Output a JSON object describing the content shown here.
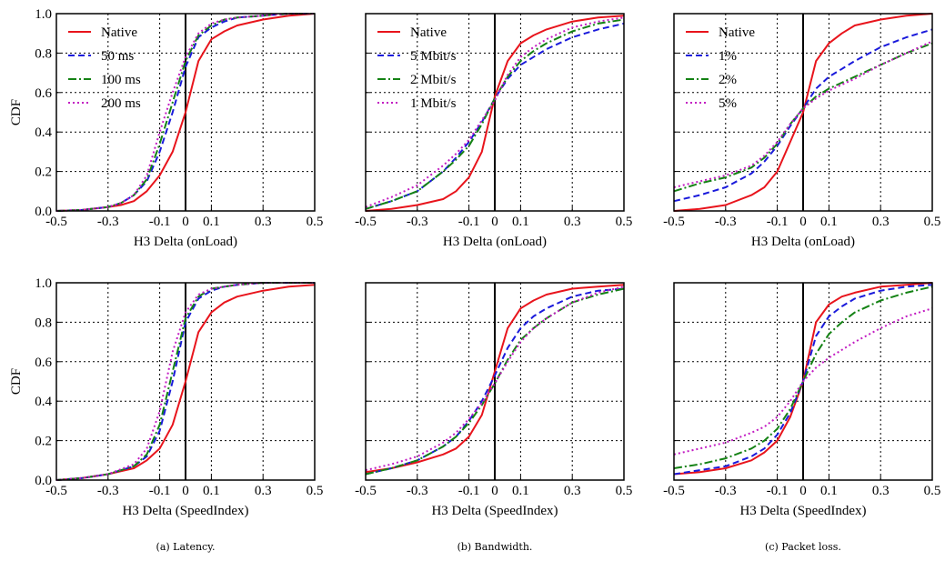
{
  "figure": {
    "captions": [
      "(a) Latency.",
      "(b) Bandwidth.",
      "(c) Packet loss."
    ]
  },
  "styles": {
    "Native": {
      "color": "#e8141c",
      "dash": "solid"
    },
    "50 ms": {
      "color": "#1a1adb",
      "dash": "dashed"
    },
    "100 ms": {
      "color": "#148214",
      "dash": "dashdot"
    },
    "200 ms": {
      "color": "#c21bc2",
      "dash": "dotted"
    },
    "5 Mbit/s": {
      "color": "#1a1adb",
      "dash": "dashed"
    },
    "2 Mbit/s": {
      "color": "#148214",
      "dash": "dashdot"
    },
    "1 Mbit/s": {
      "color": "#c21bc2",
      "dash": "dotted"
    },
    "1%": {
      "color": "#1a1adb",
      "dash": "dashed"
    },
    "2%": {
      "color": "#148214",
      "dash": "dashdot"
    },
    "5%": {
      "color": "#c21bc2",
      "dash": "dotted"
    }
  },
  "chart_data": [
    {
      "type": "line",
      "xlabel": "H3 Delta (onLoad)",
      "ylabel": "CDF",
      "xlim": [
        -0.5,
        0.5
      ],
      "ylim": [
        0,
        1
      ],
      "xticks": [
        "-0.5",
        "-0.3",
        "-0.1",
        "0",
        "0.1",
        "0.3",
        "0.5"
      ],
      "yticks": [
        "0.0",
        "0.2",
        "0.4",
        "0.6",
        "0.8",
        "1.0"
      ],
      "show_ytick_labels": true,
      "grid": true,
      "legend": "top-left",
      "series": [
        {
          "name": "Native",
          "x": [
            -0.5,
            -0.4,
            -0.3,
            -0.25,
            -0.2,
            -0.15,
            -0.1,
            -0.05,
            0,
            0.05,
            0.1,
            0.15,
            0.2,
            0.3,
            0.4,
            0.5
          ],
          "y": [
            0,
            0.005,
            0.02,
            0.03,
            0.05,
            0.1,
            0.18,
            0.3,
            0.5,
            0.76,
            0.87,
            0.91,
            0.94,
            0.97,
            0.99,
            1.0
          ]
        },
        {
          "name": "50 ms",
          "x": [
            -0.5,
            -0.4,
            -0.3,
            -0.25,
            -0.2,
            -0.15,
            -0.1,
            -0.05,
            0,
            0.05,
            0.1,
            0.15,
            0.2,
            0.3,
            0.4,
            0.5
          ],
          "y": [
            0,
            0.005,
            0.02,
            0.04,
            0.08,
            0.15,
            0.3,
            0.5,
            0.73,
            0.88,
            0.93,
            0.96,
            0.98,
            0.99,
            1.0,
            1.0
          ]
        },
        {
          "name": "100 ms",
          "x": [
            -0.5,
            -0.4,
            -0.3,
            -0.25,
            -0.2,
            -0.15,
            -0.1,
            -0.05,
            0,
            0.05,
            0.1,
            0.15,
            0.2,
            0.3,
            0.4,
            0.5
          ],
          "y": [
            0,
            0.005,
            0.02,
            0.04,
            0.08,
            0.16,
            0.34,
            0.55,
            0.76,
            0.89,
            0.94,
            0.97,
            0.98,
            0.99,
            1.0,
            1.0
          ]
        },
        {
          "name": "200 ms",
          "x": [
            -0.5,
            -0.4,
            -0.3,
            -0.25,
            -0.2,
            -0.15,
            -0.1,
            -0.05,
            0,
            0.05,
            0.1,
            0.15,
            0.2,
            0.3,
            0.4,
            0.5
          ],
          "y": [
            0,
            0.005,
            0.02,
            0.04,
            0.08,
            0.18,
            0.4,
            0.6,
            0.78,
            0.9,
            0.95,
            0.97,
            0.98,
            0.99,
            1.0,
            1.0
          ]
        }
      ]
    },
    {
      "type": "line",
      "xlabel": "H3 Delta (onLoad)",
      "ylabel": "",
      "xlim": [
        -0.5,
        0.5
      ],
      "ylim": [
        0,
        1
      ],
      "xticks": [
        "-0.5",
        "-0.3",
        "-0.1",
        "0",
        "0.1",
        "0.3",
        "0.5"
      ],
      "yticks": [
        "0.0",
        "0.2",
        "0.4",
        "0.6",
        "0.8",
        "1.0"
      ],
      "show_ytick_labels": false,
      "grid": true,
      "legend": "top-left",
      "series": [
        {
          "name": "Native",
          "x": [
            -0.5,
            -0.4,
            -0.3,
            -0.2,
            -0.15,
            -0.1,
            -0.05,
            0,
            0.05,
            0.1,
            0.15,
            0.2,
            0.3,
            0.4,
            0.5
          ],
          "y": [
            0,
            0.01,
            0.03,
            0.06,
            0.1,
            0.17,
            0.3,
            0.58,
            0.76,
            0.85,
            0.89,
            0.92,
            0.96,
            0.98,
            0.99
          ]
        },
        {
          "name": "5 Mbit/s",
          "x": [
            -0.5,
            -0.4,
            -0.3,
            -0.2,
            -0.15,
            -0.1,
            -0.05,
            0,
            0.05,
            0.1,
            0.15,
            0.2,
            0.3,
            0.4,
            0.5
          ],
          "y": [
            0.01,
            0.05,
            0.1,
            0.2,
            0.27,
            0.35,
            0.45,
            0.57,
            0.67,
            0.74,
            0.78,
            0.82,
            0.88,
            0.92,
            0.95
          ]
        },
        {
          "name": "2 Mbit/s",
          "x": [
            -0.5,
            -0.4,
            -0.3,
            -0.2,
            -0.15,
            -0.1,
            -0.05,
            0,
            0.05,
            0.1,
            0.15,
            0.2,
            0.3,
            0.4,
            0.5
          ],
          "y": [
            0.01,
            0.05,
            0.1,
            0.2,
            0.26,
            0.33,
            0.44,
            0.57,
            0.68,
            0.76,
            0.81,
            0.85,
            0.91,
            0.95,
            0.97
          ]
        },
        {
          "name": "1 Mbit/s",
          "x": [
            -0.5,
            -0.4,
            -0.3,
            -0.2,
            -0.15,
            -0.1,
            -0.05,
            0,
            0.05,
            0.1,
            0.15,
            0.2,
            0.3,
            0.4,
            0.5
          ],
          "y": [
            0.02,
            0.07,
            0.13,
            0.23,
            0.29,
            0.36,
            0.46,
            0.56,
            0.69,
            0.78,
            0.83,
            0.87,
            0.93,
            0.96,
            0.98
          ]
        }
      ]
    },
    {
      "type": "line",
      "xlabel": "H3 Delta (onLoad)",
      "ylabel": "",
      "xlim": [
        -0.5,
        0.5
      ],
      "ylim": [
        0,
        1
      ],
      "xticks": [
        "-0.5",
        "-0.3",
        "-0.1",
        "0",
        "0.1",
        "0.3",
        "0.5"
      ],
      "yticks": [
        "0.0",
        "0.2",
        "0.4",
        "0.6",
        "0.8",
        "1.0"
      ],
      "show_ytick_labels": false,
      "grid": true,
      "legend": "top-left",
      "series": [
        {
          "name": "Native",
          "x": [
            -0.5,
            -0.4,
            -0.3,
            -0.2,
            -0.15,
            -0.1,
            -0.05,
            0,
            0.05,
            0.1,
            0.15,
            0.2,
            0.3,
            0.4,
            0.5
          ],
          "y": [
            0,
            0.01,
            0.03,
            0.08,
            0.12,
            0.2,
            0.35,
            0.5,
            0.76,
            0.85,
            0.9,
            0.94,
            0.97,
            0.99,
            1.0
          ]
        },
        {
          "name": "1%",
          "x": [
            -0.5,
            -0.4,
            -0.3,
            -0.2,
            -0.15,
            -0.1,
            -0.05,
            0,
            0.05,
            0.1,
            0.15,
            0.2,
            0.3,
            0.4,
            0.5
          ],
          "y": [
            0.05,
            0.08,
            0.12,
            0.19,
            0.25,
            0.33,
            0.43,
            0.52,
            0.62,
            0.68,
            0.72,
            0.76,
            0.83,
            0.88,
            0.92
          ]
        },
        {
          "name": "2%",
          "x": [
            -0.5,
            -0.4,
            -0.3,
            -0.2,
            -0.15,
            -0.1,
            -0.05,
            0,
            0.05,
            0.1,
            0.15,
            0.2,
            0.3,
            0.4,
            0.5
          ],
          "y": [
            0.1,
            0.14,
            0.17,
            0.22,
            0.27,
            0.34,
            0.44,
            0.52,
            0.58,
            0.62,
            0.65,
            0.68,
            0.74,
            0.8,
            0.85
          ]
        },
        {
          "name": "5%",
          "x": [
            -0.5,
            -0.4,
            -0.3,
            -0.2,
            -0.15,
            -0.1,
            -0.05,
            0,
            0.05,
            0.1,
            0.15,
            0.2,
            0.3,
            0.4,
            0.5
          ],
          "y": [
            0.12,
            0.15,
            0.18,
            0.23,
            0.28,
            0.35,
            0.44,
            0.52,
            0.57,
            0.61,
            0.64,
            0.67,
            0.74,
            0.8,
            0.86
          ]
        }
      ]
    },
    {
      "type": "line",
      "xlabel": "H3 Delta (SpeedIndex)",
      "ylabel": "CDF",
      "xlim": [
        -0.5,
        0.5
      ],
      "ylim": [
        0,
        1
      ],
      "xticks": [
        "-0.5",
        "-0.3",
        "-0.1",
        "0",
        "0.1",
        "0.3",
        "0.5"
      ],
      "yticks": [
        "0.0",
        "0.2",
        "0.4",
        "0.6",
        "0.8",
        "1.0"
      ],
      "show_ytick_labels": true,
      "grid": true,
      "legend": "none",
      "series": [
        {
          "name": "Native",
          "x": [
            -0.5,
            -0.4,
            -0.3,
            -0.2,
            -0.15,
            -0.1,
            -0.05,
            0,
            0.05,
            0.1,
            0.15,
            0.2,
            0.3,
            0.4,
            0.5
          ],
          "y": [
            0,
            0.01,
            0.03,
            0.06,
            0.1,
            0.16,
            0.28,
            0.5,
            0.75,
            0.85,
            0.9,
            0.93,
            0.96,
            0.98,
            0.99
          ]
        },
        {
          "name": "50 ms",
          "x": [
            -0.5,
            -0.4,
            -0.3,
            -0.2,
            -0.15,
            -0.1,
            -0.05,
            0,
            0.05,
            0.1,
            0.15,
            0.2,
            0.3,
            0.4,
            0.5
          ],
          "y": [
            0,
            0.01,
            0.03,
            0.07,
            0.12,
            0.25,
            0.5,
            0.8,
            0.92,
            0.96,
            0.98,
            0.99,
            1.0,
            1.0,
            1.0
          ]
        },
        {
          "name": "100 ms",
          "x": [
            -0.5,
            -0.4,
            -0.3,
            -0.2,
            -0.15,
            -0.1,
            -0.05,
            0,
            0.05,
            0.1,
            0.15,
            0.2,
            0.3,
            0.4,
            0.5
          ],
          "y": [
            0,
            0.01,
            0.03,
            0.07,
            0.13,
            0.28,
            0.55,
            0.82,
            0.93,
            0.97,
            0.98,
            0.99,
            1.0,
            1.0,
            1.0
          ]
        },
        {
          "name": "200 ms",
          "x": [
            -0.5,
            -0.4,
            -0.3,
            -0.2,
            -0.15,
            -0.1,
            -0.05,
            0,
            0.05,
            0.1,
            0.15,
            0.2,
            0.3,
            0.4,
            0.5
          ],
          "y": [
            0,
            0.01,
            0.03,
            0.08,
            0.16,
            0.35,
            0.65,
            0.85,
            0.94,
            0.97,
            0.98,
            0.99,
            1.0,
            1.0,
            1.0
          ]
        }
      ]
    },
    {
      "type": "line",
      "xlabel": "H3 Delta (SpeedIndex)",
      "ylabel": "",
      "xlim": [
        -0.5,
        0.5
      ],
      "ylim": [
        0,
        1
      ],
      "xticks": [
        "-0.5",
        "-0.3",
        "-0.1",
        "0",
        "0.1",
        "0.3",
        "0.5"
      ],
      "yticks": [
        "0.0",
        "0.2",
        "0.4",
        "0.6",
        "0.8",
        "1.0"
      ],
      "show_ytick_labels": false,
      "grid": true,
      "legend": "none",
      "series": [
        {
          "name": "Native",
          "x": [
            -0.5,
            -0.4,
            -0.3,
            -0.2,
            -0.15,
            -0.1,
            -0.05,
            0,
            0.05,
            0.1,
            0.15,
            0.2,
            0.3,
            0.4,
            0.5
          ],
          "y": [
            0.04,
            0.06,
            0.09,
            0.13,
            0.16,
            0.22,
            0.33,
            0.55,
            0.77,
            0.87,
            0.91,
            0.94,
            0.97,
            0.98,
            0.99
          ]
        },
        {
          "name": "5 Mbit/s",
          "x": [
            -0.5,
            -0.4,
            -0.3,
            -0.2,
            -0.15,
            -0.1,
            -0.05,
            0,
            0.05,
            0.1,
            0.15,
            0.2,
            0.3,
            0.4,
            0.5
          ],
          "y": [
            0.03,
            0.06,
            0.1,
            0.17,
            0.22,
            0.3,
            0.4,
            0.53,
            0.67,
            0.77,
            0.83,
            0.87,
            0.93,
            0.96,
            0.97
          ]
        },
        {
          "name": "2 Mbit/s",
          "x": [
            -0.5,
            -0.4,
            -0.3,
            -0.2,
            -0.15,
            -0.1,
            -0.05,
            0,
            0.05,
            0.1,
            0.15,
            0.2,
            0.3,
            0.4,
            0.5
          ],
          "y": [
            0.03,
            0.06,
            0.1,
            0.17,
            0.22,
            0.29,
            0.38,
            0.49,
            0.61,
            0.71,
            0.77,
            0.82,
            0.9,
            0.94,
            0.97
          ]
        },
        {
          "name": "1 Mbit/s",
          "x": [
            -0.5,
            -0.4,
            -0.3,
            -0.2,
            -0.15,
            -0.1,
            -0.05,
            0,
            0.05,
            0.1,
            0.15,
            0.2,
            0.3,
            0.4,
            0.5
          ],
          "y": [
            0.05,
            0.08,
            0.12,
            0.19,
            0.24,
            0.31,
            0.39,
            0.49,
            0.6,
            0.7,
            0.77,
            0.82,
            0.9,
            0.95,
            0.98
          ]
        }
      ]
    },
    {
      "type": "line",
      "xlabel": "H3 Delta (SpeedIndex)",
      "ylabel": "",
      "xlim": [
        -0.5,
        0.5
      ],
      "ylim": [
        0,
        1
      ],
      "xticks": [
        "-0.5",
        "-0.3",
        "-0.1",
        "0",
        "0.1",
        "0.3",
        "0.5"
      ],
      "yticks": [
        "0.0",
        "0.2",
        "0.4",
        "0.6",
        "0.8",
        "1.0"
      ],
      "show_ytick_labels": false,
      "grid": true,
      "legend": "none",
      "series": [
        {
          "name": "Native",
          "x": [
            -0.5,
            -0.4,
            -0.3,
            -0.2,
            -0.15,
            -0.1,
            -0.05,
            0,
            0.05,
            0.1,
            0.15,
            0.2,
            0.3,
            0.4,
            0.5
          ],
          "y": [
            0.03,
            0.04,
            0.06,
            0.1,
            0.14,
            0.2,
            0.32,
            0.5,
            0.8,
            0.89,
            0.93,
            0.95,
            0.98,
            0.99,
            1.0
          ]
        },
        {
          "name": "1%",
          "x": [
            -0.5,
            -0.4,
            -0.3,
            -0.2,
            -0.15,
            -0.1,
            -0.05,
            0,
            0.05,
            0.1,
            0.15,
            0.2,
            0.3,
            0.4,
            0.5
          ],
          "y": [
            0.03,
            0.05,
            0.07,
            0.12,
            0.16,
            0.23,
            0.34,
            0.5,
            0.73,
            0.83,
            0.88,
            0.92,
            0.96,
            0.98,
            0.99
          ]
        },
        {
          "name": "2%",
          "x": [
            -0.5,
            -0.4,
            -0.3,
            -0.2,
            -0.15,
            -0.1,
            -0.05,
            0,
            0.05,
            0.1,
            0.15,
            0.2,
            0.3,
            0.4,
            0.5
          ],
          "y": [
            0.06,
            0.08,
            0.11,
            0.16,
            0.2,
            0.26,
            0.36,
            0.5,
            0.64,
            0.74,
            0.8,
            0.85,
            0.91,
            0.95,
            0.98
          ]
        },
        {
          "name": "5%",
          "x": [
            -0.5,
            -0.4,
            -0.3,
            -0.2,
            -0.15,
            -0.1,
            -0.05,
            0,
            0.05,
            0.1,
            0.15,
            0.2,
            0.3,
            0.4,
            0.5
          ],
          "y": [
            0.13,
            0.16,
            0.19,
            0.24,
            0.27,
            0.32,
            0.4,
            0.5,
            0.57,
            0.62,
            0.66,
            0.7,
            0.77,
            0.83,
            0.87
          ]
        }
      ]
    }
  ]
}
